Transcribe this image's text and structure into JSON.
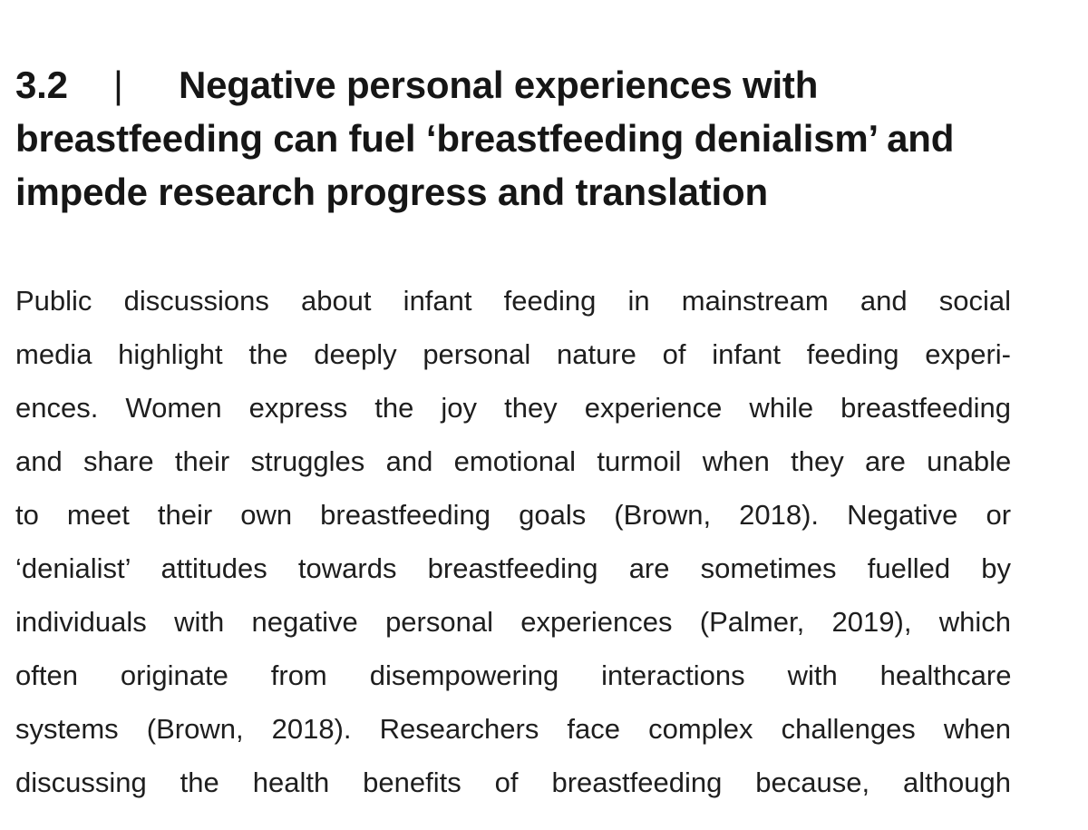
{
  "section": {
    "number": "3.2",
    "separator": "|",
    "title": "Negative personal experiences with breastfeeding can fuel ‘breastfeeding denialism’ and impede research progress and translation",
    "title_lines": [
      "Negative personal experiences with",
      "breastfeeding can fuel ‘breastfeeding denialism’ and",
      "impede research progress and translation"
    ]
  },
  "paragraph": {
    "lines": [
      "Public discussions about infant feeding in mainstream and social",
      "media highlight the deeply personal nature of infant feeding experi-",
      "ences. Women express the joy they experience while breastfeeding",
      "and share their struggles and emotional turmoil when they are unable",
      "to meet their own breastfeeding goals (Brown, 2018). Negative or",
      "‘denialist’ attitudes towards breastfeeding are sometimes fuelled by",
      "individuals with negative personal experiences (Palmer, 2019), which",
      "often originate from disempowering interactions with healthcare",
      "systems (Brown, 2018). Researchers face complex challenges when",
      "discussing the health benefits of breastfeeding because, although"
    ]
  }
}
